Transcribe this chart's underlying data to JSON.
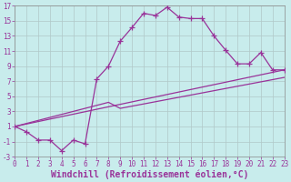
{
  "xlabel": "Windchill (Refroidissement éolien,°C)",
  "background_color": "#c8ecec",
  "grid_color": "#b0c8c8",
  "line_color": "#993399",
  "xlim": [
    0,
    23
  ],
  "ylim": [
    -3,
    17
  ],
  "xticks": [
    0,
    1,
    2,
    3,
    4,
    5,
    6,
    7,
    8,
    9,
    10,
    11,
    12,
    13,
    14,
    15,
    16,
    17,
    18,
    19,
    20,
    21,
    22,
    23
  ],
  "yticks": [
    -3,
    -1,
    1,
    3,
    5,
    7,
    9,
    11,
    13,
    15,
    17
  ],
  "line1_x": [
    0,
    1,
    2,
    3,
    4,
    5,
    6,
    7,
    8,
    9,
    10,
    11,
    12,
    13,
    14,
    15,
    16,
    17,
    18,
    19,
    20,
    21,
    22,
    23
  ],
  "line1_y": [
    1,
    0.3,
    -0.8,
    -0.8,
    -2.2,
    -0.8,
    -1.3,
    7.3,
    9.0,
    12.3,
    14.1,
    16.0,
    15.7,
    16.8,
    15.5,
    15.3,
    15.3,
    13.0,
    11.1,
    9.3,
    9.3,
    10.8,
    8.5,
    8.5
  ],
  "line2_x": [
    0,
    23
  ],
  "line2_y": [
    1.0,
    8.5
  ],
  "line3_x": [
    0,
    8,
    9,
    23
  ],
  "line3_y": [
    1.0,
    4.2,
    3.4,
    7.5
  ],
  "marker": "+",
  "markersize": 4,
  "linewidth": 0.9,
  "xlabel_fontsize": 7,
  "tick_fontsize": 5.5
}
